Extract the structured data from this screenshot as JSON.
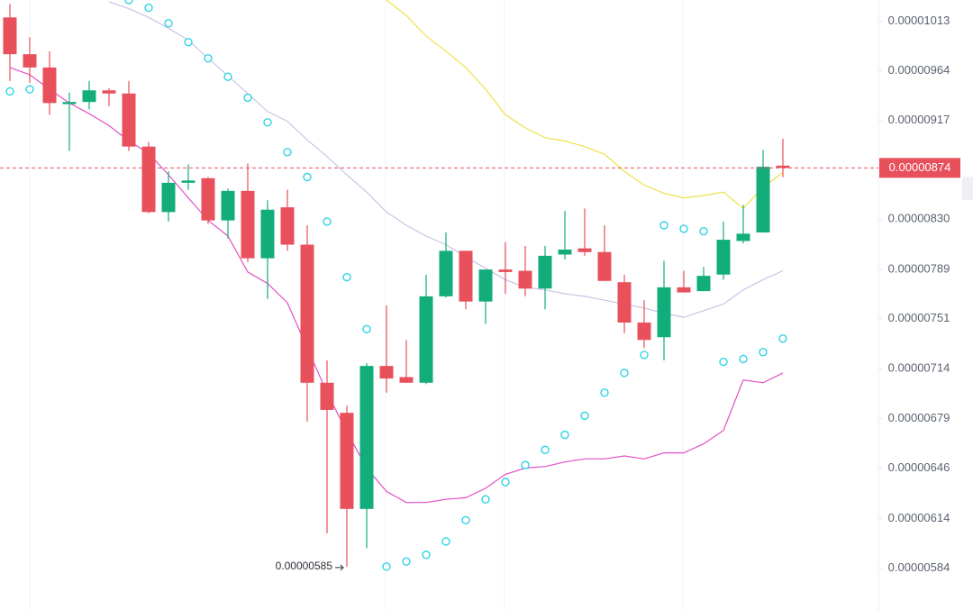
{
  "chart_data": {
    "type": "candlestick",
    "log_scale": true,
    "up_color": "#12ad7b",
    "down_color": "#e8505b",
    "ylim": [
      5.6e-06,
      1.035e-05
    ],
    "yticks": [
      {
        "value": 1.013e-05,
        "label": "0.00001013"
      },
      {
        "value": 9.64e-06,
        "label": "0.00000964"
      },
      {
        "value": 9.17e-06,
        "label": "0.00000917"
      },
      {
        "value": 8.3e-06,
        "label": "0.00000830"
      },
      {
        "value": 7.89e-06,
        "label": "0.00000789"
      },
      {
        "value": 7.51e-06,
        "label": "0.00000751"
      },
      {
        "value": 7.14e-06,
        "label": "0.00000714"
      },
      {
        "value": 6.79e-06,
        "label": "0.00000679"
      },
      {
        "value": 6.46e-06,
        "label": "0.00000646"
      },
      {
        "value": 6.14e-06,
        "label": "0.00000614"
      },
      {
        "value": 5.84e-06,
        "label": "0.00000584"
      }
    ],
    "open": [
      1.017e-05,
      9.8e-06,
      9.67e-06,
      9.32e-06,
      9.34e-06,
      9.45e-06,
      9.42e-06,
      8.93e-06,
      8.36e-06,
      8.61e-06,
      8.65e-06,
      8.29e-06,
      8.54e-06,
      7.98e-06,
      8.4e-06,
      8.09e-06,
      7.04e-06,
      6.83e-06,
      6.2e-06,
      7.16e-06,
      7.08e-06,
      7.04e-06,
      7.68e-06,
      8.04e-06,
      7.64e-06,
      7.89e-06,
      7.88e-06,
      7.74e-06,
      8.01e-06,
      8.06e-06,
      8.03e-06,
      7.79e-06,
      7.48e-06,
      7.37e-06,
      7.75e-06,
      7.72e-06,
      7.85e-06,
      8.12e-06,
      8.19e-06,
      8.76e-06
    ],
    "high": [
      1.031e-05,
      9.97e-06,
      9.83e-06,
      9.43e-06,
      9.54e-06,
      9.47e-06,
      9.54e-06,
      8.97e-06,
      8.71e-06,
      8.77e-06,
      8.66e-06,
      8.56e-06,
      8.78e-06,
      8.46e-06,
      8.55e-06,
      8.25e-06,
      7.2e-06,
      6.88e-06,
      7.18e-06,
      7.61e-06,
      7.35e-06,
      7.85e-06,
      8.19e-06,
      8.04e-06,
      7.89e-06,
      8.11e-06,
      8.08e-06,
      8.08e-06,
      8.37e-06,
      8.39e-06,
      8.25e-06,
      7.85e-06,
      7.65e-06,
      7.96e-06,
      7.88e-06,
      7.91e-06,
      8.28e-06,
      8.42e-06,
      8.9e-06,
      9e-06
    ],
    "low": [
      9.54e-06,
      9.52e-06,
      9.22e-06,
      8.89e-06,
      9.27e-06,
      9.3e-06,
      8.89e-06,
      8.35e-06,
      8.28e-06,
      8.55e-06,
      8.26e-06,
      8.14e-06,
      7.95e-06,
      7.66e-06,
      8.04e-06,
      6.77e-06,
      6.05e-06,
      5.85e-06,
      5.96e-06,
      6.97e-06,
      7.04e-06,
      7.03e-06,
      7.67e-06,
      7.58e-06,
      7.47e-06,
      7.7e-06,
      7.68e-06,
      7.58e-06,
      7.97e-06,
      8e-06,
      7.8e-06,
      7.4e-06,
      7.29e-06,
      7.2e-06,
      7.71e-06,
      7.72e-06,
      7.81e-06,
      8.1e-06,
      8.19e-06,
      8.66e-06
    ],
    "close": [
      9.8e-06,
      9.67e-06,
      9.33e-06,
      9.34e-06,
      9.45e-06,
      9.42e-06,
      8.93e-06,
      8.36e-06,
      8.61e-06,
      8.63e-06,
      8.29e-06,
      8.54e-06,
      7.98e-06,
      8.38e-06,
      8.09e-06,
      7.04e-06,
      6.85e-06,
      6.2e-06,
      7.16e-06,
      7.07e-06,
      7.04e-06,
      7.68e-06,
      8.04e-06,
      7.64e-06,
      7.89e-06,
      7.87e-06,
      7.74e-06,
      8e-06,
      8.05e-06,
      8.03e-06,
      7.8e-06,
      7.48e-06,
      7.35e-06,
      7.75e-06,
      7.71e-06,
      7.84e-06,
      8.13e-06,
      8.18e-06,
      8.75e-06,
      8.74e-06
    ],
    "overlays": [
      {
        "type": "line",
        "color": "#efe14a",
        "values": [
          null,
          null,
          null,
          null,
          null,
          null,
          null,
          null,
          null,
          null,
          null,
          null,
          null,
          null,
          null,
          null,
          null,
          null,
          null,
          1.035e-05,
          1.019e-05,
          9.98e-06,
          9.83e-06,
          9.67e-06,
          9.46e-06,
          9.22e-06,
          9.1e-06,
          9.01e-06,
          8.98e-06,
          8.93e-06,
          8.86e-06,
          8.71e-06,
          8.59e-06,
          8.52e-06,
          8.48e-06,
          8.5e-06,
          8.53e-06,
          8.39e-06,
          8.57e-06,
          8.7e-06
        ]
      },
      {
        "type": "line",
        "color": "#cbc3e6",
        "values": [
          null,
          null,
          null,
          null,
          null,
          1.033e-05,
          1.026e-05,
          1.017e-05,
          1.006e-05,
          9.94e-06,
          9.76e-06,
          9.59e-06,
          9.42e-06,
          9.25e-06,
          9.16e-06,
          8.99e-06,
          8.84e-06,
          8.68e-06,
          8.53e-06,
          8.36e-06,
          8.25e-06,
          8.16e-06,
          8.09e-06,
          7.99e-06,
          7.9e-06,
          7.81e-06,
          7.75e-06,
          7.73e-06,
          7.7e-06,
          7.68e-06,
          7.65e-06,
          7.62e-06,
          7.59e-06,
          7.55e-06,
          7.52e-06,
          7.57e-06,
          7.62e-06,
          7.73e-06,
          7.81e-06,
          7.88e-06
        ]
      },
      {
        "type": "line",
        "color": "#e34fc4",
        "values": [
          9.67e-06,
          9.6e-06,
          9.46e-06,
          9.33e-06,
          9.23e-06,
          9.12e-06,
          8.98e-06,
          8.87e-06,
          8.68e-06,
          8.48e-06,
          8.29e-06,
          8.16e-06,
          7.87e-06,
          7.78e-06,
          7.63e-06,
          7.29e-06,
          6.97e-06,
          6.7e-06,
          6.46e-06,
          6.31e-06,
          6.24e-06,
          6.24e-06,
          6.26e-06,
          6.27e-06,
          6.33e-06,
          6.42e-06,
          6.46e-06,
          6.47e-06,
          6.5e-06,
          6.52e-06,
          6.52e-06,
          6.54e-06,
          6.52e-06,
          6.56e-06,
          6.56e-06,
          6.62e-06,
          6.71e-06,
          7.06e-06,
          7.04e-06,
          7.11e-06
        ]
      },
      {
        "type": "dots",
        "color": "#2fd3e6",
        "values": [
          9.44e-06,
          9.46e-06,
          null,
          null,
          null,
          null,
          1.035e-05,
          1.027e-05,
          1.011e-05,
          9.92e-06,
          9.76e-06,
          9.58e-06,
          9.38e-06,
          9.15e-06,
          8.88e-06,
          8.66e-06,
          8.28e-06,
          7.83e-06,
          7.43e-06,
          5.85e-06,
          5.88e-06,
          5.92e-06,
          6e-06,
          6.13e-06,
          6.26e-06,
          6.37e-06,
          6.48e-06,
          6.58e-06,
          6.68e-06,
          6.81e-06,
          6.97e-06,
          7.11e-06,
          7.24e-06,
          8.25e-06,
          8.22e-06,
          8.2e-06,
          7.19e-06,
          7.21e-06,
          7.26e-06,
          7.36e-06
        ]
      }
    ],
    "last_price": {
      "value": 8.74e-06,
      "label": "0.00000874"
    },
    "low_marker": {
      "value": 5.85e-06,
      "label": "0.00000585"
    }
  }
}
